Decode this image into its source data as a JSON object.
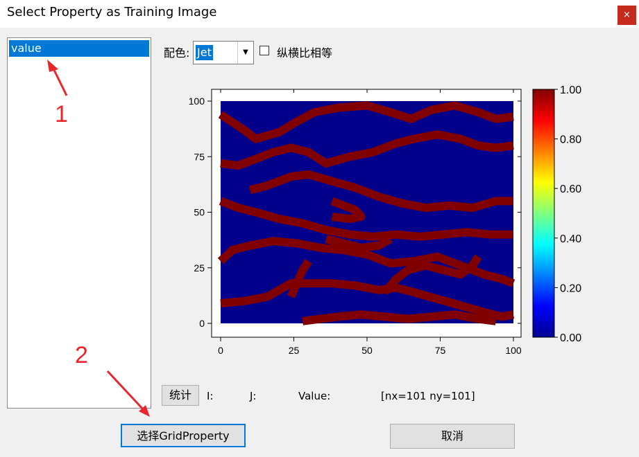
{
  "window": {
    "title": "Select Property as Training Image",
    "close_label": "×"
  },
  "property_list": {
    "items": [
      "value"
    ]
  },
  "annotations": {
    "marker_1": "1",
    "marker_2": "2",
    "color": "#e8262e"
  },
  "toolbar": {
    "colormap_label": "配色:",
    "colormap_value": "Jet",
    "aspect_label": "纵横比相等",
    "aspect_checked": false
  },
  "chart_data": {
    "type": "heatmap",
    "colormap": "jet",
    "nx": 101,
    "ny": 101,
    "xlim": [
      0,
      100
    ],
    "ylim": [
      0,
      100
    ],
    "x_ticks": [
      "0",
      "25",
      "50",
      "75",
      "100"
    ],
    "y_ticks": [
      "100",
      "75",
      "50",
      "25",
      "0"
    ],
    "value_range": [
      0,
      1
    ],
    "colorbar_ticks": [
      "1.00",
      "0.80",
      "0.60",
      "0.40",
      "0.20",
      "0.00"
    ],
    "background_value": 0,
    "channel_value": 1,
    "low_color": "#00008b",
    "high_color": "#800000"
  },
  "status": {
    "stat_button": "统计",
    "i_label": "I:",
    "j_label": "J:",
    "value_label": "Value:",
    "grid_size": "[nx=101  ny=101]"
  },
  "footer": {
    "select_button": "选择GridProperty",
    "cancel_button": "取消"
  }
}
